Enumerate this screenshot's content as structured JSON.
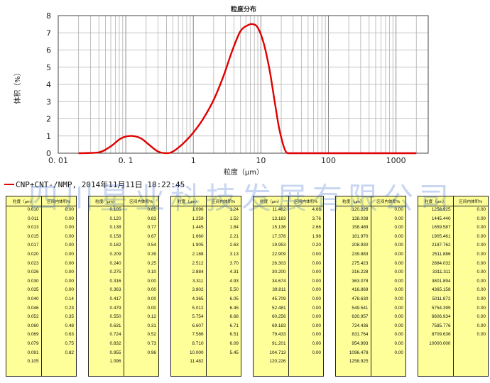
{
  "chart_data": {
    "type": "line",
    "title": "粒度分布",
    "xlabel": "粒度（μm）",
    "ylabel": "体积（%）",
    "xscale": "log",
    "xlim": [
      0.01,
      3000
    ],
    "ylim": [
      0,
      8
    ],
    "x_tick_labels": [
      "0. 01",
      "0. 1",
      "1",
      "10",
      "100",
      "1000"
    ],
    "y_tick_labels": [
      "0",
      "1",
      "2",
      "3",
      "4",
      "5",
      "6",
      "7",
      "8"
    ],
    "grid": true,
    "line_color": "#e00000",
    "series": [
      {
        "name": "CNP+CNT-/NMP, 2014年11月11日 18:22:45",
        "x": [
          0.02,
          0.04,
          0.06,
          0.08,
          0.1,
          0.13,
          0.17,
          0.22,
          0.3,
          0.4,
          0.5,
          0.7,
          1,
          1.4,
          2,
          2.8,
          3.8,
          5,
          6.5,
          7.6,
          9,
          11,
          13.5,
          16,
          18.5,
          21,
          23,
          25,
          30,
          100,
          1000,
          2000
        ],
        "y": [
          0,
          0.05,
          0.4,
          0.8,
          0.97,
          1.0,
          0.85,
          0.5,
          0.1,
          0,
          0.1,
          0.55,
          1.2,
          2.0,
          3.1,
          4.5,
          6.0,
          7.1,
          7.45,
          7.5,
          7.3,
          6.4,
          4.8,
          3.0,
          1.5,
          0.6,
          0.15,
          0,
          0,
          0,
          0,
          0
        ]
      }
    ]
  },
  "legend_text": "CNP+CNT-/NMP, 2014年11月11日 18:22:45",
  "table_header": {
    "size": "粒度（μm）",
    "percent": "区间内体积%"
  },
  "tables": [
    {
      "sizes": [
        "0.010",
        "0.011",
        "0.013",
        "0.015",
        "0.017",
        "0.020",
        "0.023",
        "0.026",
        "0.030",
        "0.035",
        "0.040",
        "0.046",
        "0.052",
        "0.060",
        "0.069",
        "0.079",
        "0.091",
        "0.105"
      ],
      "percents": [
        "0.00",
        "0.00",
        "0.00",
        "0.00",
        "0.00",
        "0.00",
        "0.00",
        "0.00",
        "0.00",
        "0.00",
        "0.14",
        "0.23",
        "0.35",
        "0.48",
        "0.63",
        "0.75",
        "0.82",
        ""
      ]
    },
    {
      "sizes": [
        "0.105",
        "0.120",
        "0.138",
        "0.158",
        "0.182",
        "0.209",
        "0.240",
        "0.275",
        "0.316",
        "0.363",
        "0.417",
        "0.479",
        "0.550",
        "0.631",
        "0.724",
        "0.832",
        "0.955",
        "1.096"
      ],
      "percents": [
        "0.85",
        "0.83",
        "0.77",
        "0.67",
        "0.54",
        "0.39",
        "0.25",
        "0.10",
        "0.00",
        "0.00",
        "0.00",
        "0.00",
        "0.12",
        "0.31",
        "0.52",
        "0.73",
        "0.96",
        ""
      ]
    },
    {
      "sizes": [
        "1.096",
        "1.259",
        "1.445",
        "1.660",
        "1.905",
        "2.188",
        "2.512",
        "2.884",
        "3.311",
        "3.802",
        "4.365",
        "5.012",
        "5.754",
        "6.607",
        "7.586",
        "8.710",
        "10.000",
        "11.482"
      ],
      "percents": [
        "1.24",
        "1.52",
        "1.84",
        "2.21",
        "2.63",
        "3.13",
        "3.70",
        "4.31",
        "4.93",
        "5.50",
        "6.05",
        "6.45",
        "6.68",
        "6.71",
        "6.51",
        "6.09",
        "5.45",
        ""
      ]
    },
    {
      "sizes": [
        "11.482",
        "13.183",
        "15.136",
        "17.378",
        "19.953",
        "22.909",
        "26.303",
        "30.200",
        "34.674",
        "39.811",
        "45.709",
        "52.481",
        "60.256",
        "69.183",
        "79.433",
        "91.201",
        "104.713",
        "120.226"
      ],
      "percents": [
        "4.66",
        "3.76",
        "2.66",
        "1.98",
        "0.20",
        "0.00",
        "0.00",
        "0.00",
        "0.00",
        "0.00",
        "0.00",
        "0.00",
        "0.00",
        "0.00",
        "0.00",
        "0.00",
        "0.00",
        ""
      ]
    },
    {
      "sizes": [
        "120.226",
        "138.038",
        "158.489",
        "181.970",
        "208.930",
        "239.883",
        "275.423",
        "316.228",
        "363.078",
        "416.869",
        "478.630",
        "549.541",
        "630.957",
        "724.436",
        "831.764",
        "954.993",
        "1096.478",
        "1258.925"
      ],
      "percents": [
        "0.00",
        "0.00",
        "0.00",
        "0.00",
        "0.00",
        "0.00",
        "0.00",
        "0.00",
        "0.00",
        "0.00",
        "0.00",
        "0.00",
        "0.00",
        "0.00",
        "0.00",
        "0.00",
        "0.00",
        ""
      ]
    },
    {
      "sizes": [
        "1258.925",
        "1445.440",
        "1659.587",
        "1905.461",
        "2187.762",
        "2511.886",
        "2884.032",
        "3311.311",
        "3801.894",
        "4365.158",
        "5011.872",
        "5754.399",
        "6606.934",
        "7585.776",
        "8709.636",
        "10000.000",
        "",
        ""
      ],
      "percents": [
        "0.00",
        "0.00",
        "0.00",
        "0.00",
        "0.00",
        "0.00",
        "0.00",
        "0.00",
        "0.00",
        "0.00",
        "0.00",
        "0.00",
        "0.00",
        "0.00",
        "0.00",
        "",
        "",
        ""
      ]
    }
  ],
  "watermark": "四川星业科技发展有限公司"
}
